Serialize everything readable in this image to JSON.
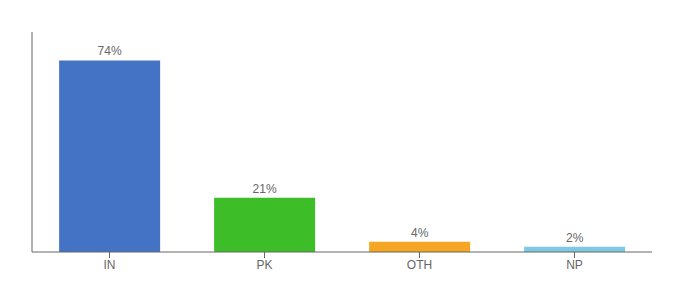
{
  "chart_data": {
    "type": "bar",
    "categories": [
      "IN",
      "PK",
      "OTH",
      "NP"
    ],
    "values": [
      74,
      21,
      4,
      2
    ],
    "value_labels": [
      "74%",
      "21%",
      "4%",
      "2%"
    ],
    "data_labels": true,
    "colors": [
      "#4472C4",
      "#3DBE29",
      "#F5A623",
      "#7EC8E3"
    ],
    "ylim": [
      0,
      85
    ],
    "grid": false,
    "tick_labels": "x"
  }
}
